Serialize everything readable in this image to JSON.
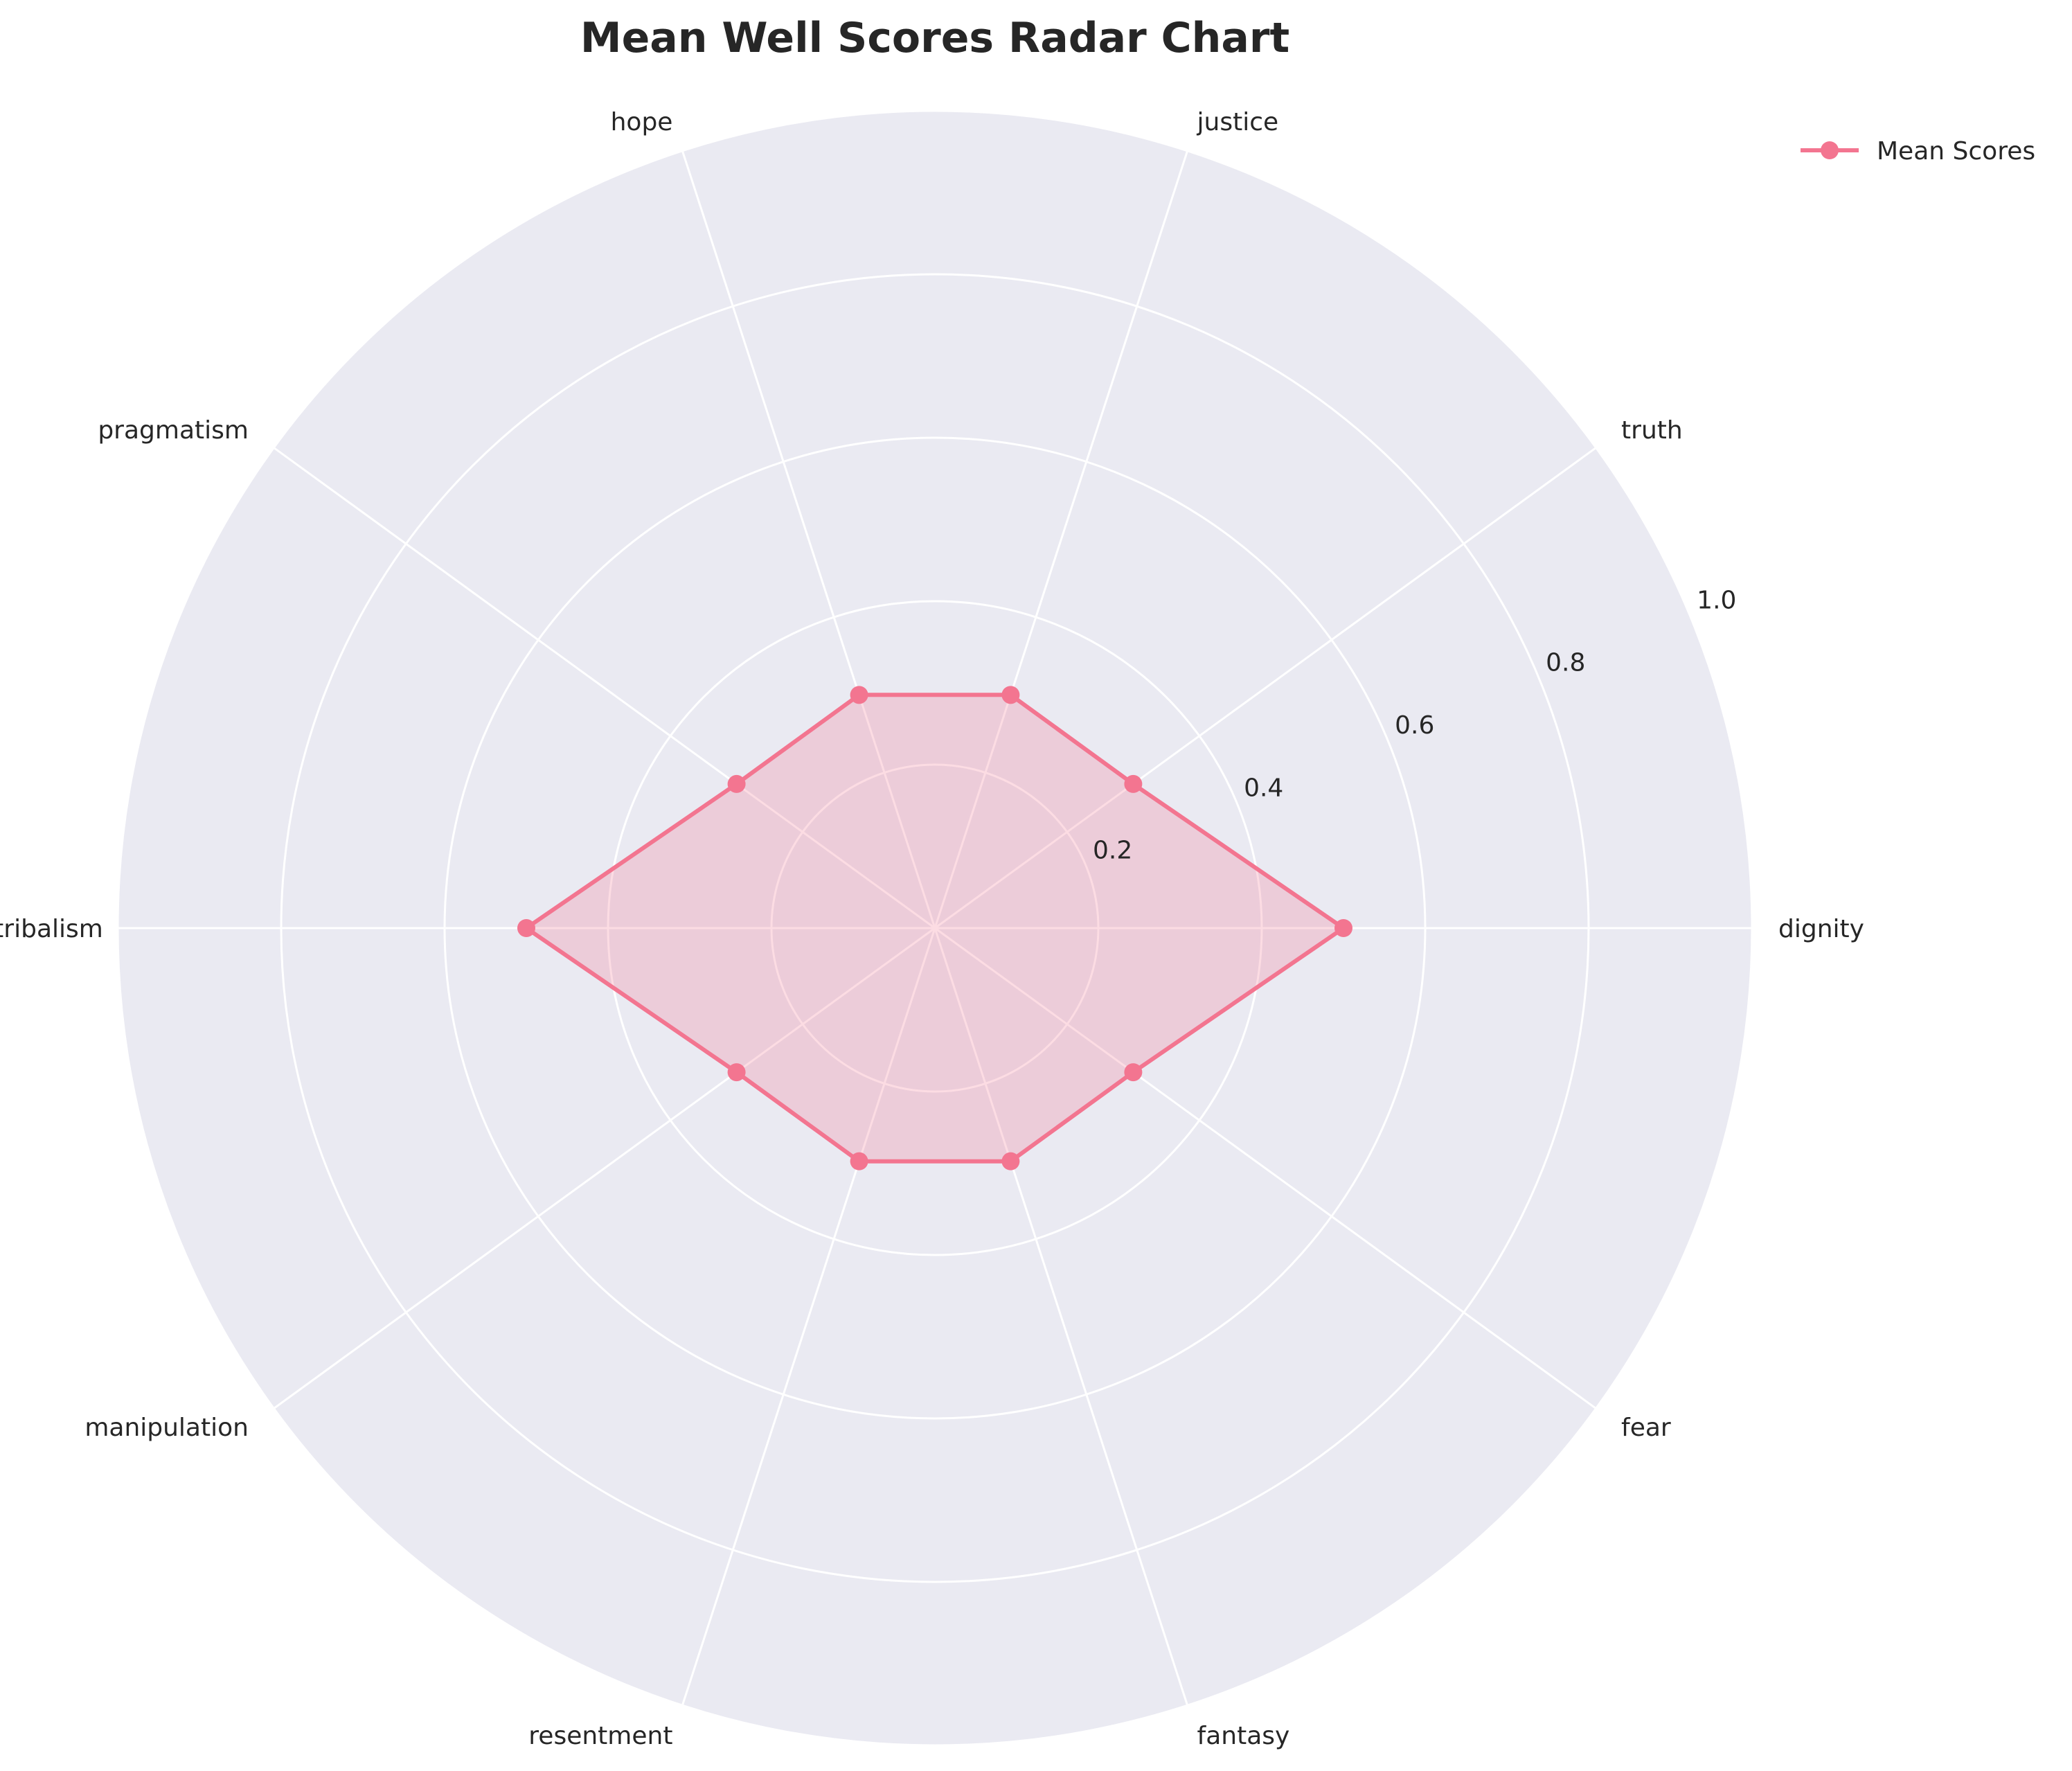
{
  "chart_data": {
    "type": "radar",
    "title": "Mean Well Scores Radar Chart",
    "categories": [
      "dignity",
      "truth",
      "justice",
      "hope",
      "pragmatism",
      "tribalism",
      "manipulation",
      "resentment",
      "fantasy",
      "fear"
    ],
    "series": [
      {
        "name": "Mean Scores",
        "values": [
          0.5,
          0.3,
          0.3,
          0.3,
          0.3,
          0.5,
          0.3,
          0.3,
          0.3,
          0.3
        ]
      }
    ],
    "rlim": [
      0,
      1.0
    ],
    "r_ticks": [
      0.2,
      0.4,
      0.6,
      0.8,
      1.0
    ],
    "r_tick_labels": [
      "0.2",
      "0.4",
      "0.6",
      "0.8",
      "1.0"
    ],
    "grid": true,
    "legend_position": "top-right",
    "colors": {
      "series": "#f37590",
      "fill": "#f37590",
      "plot_background": "#eaeaf2",
      "grid": "#ffffff",
      "text": "#262626"
    }
  }
}
